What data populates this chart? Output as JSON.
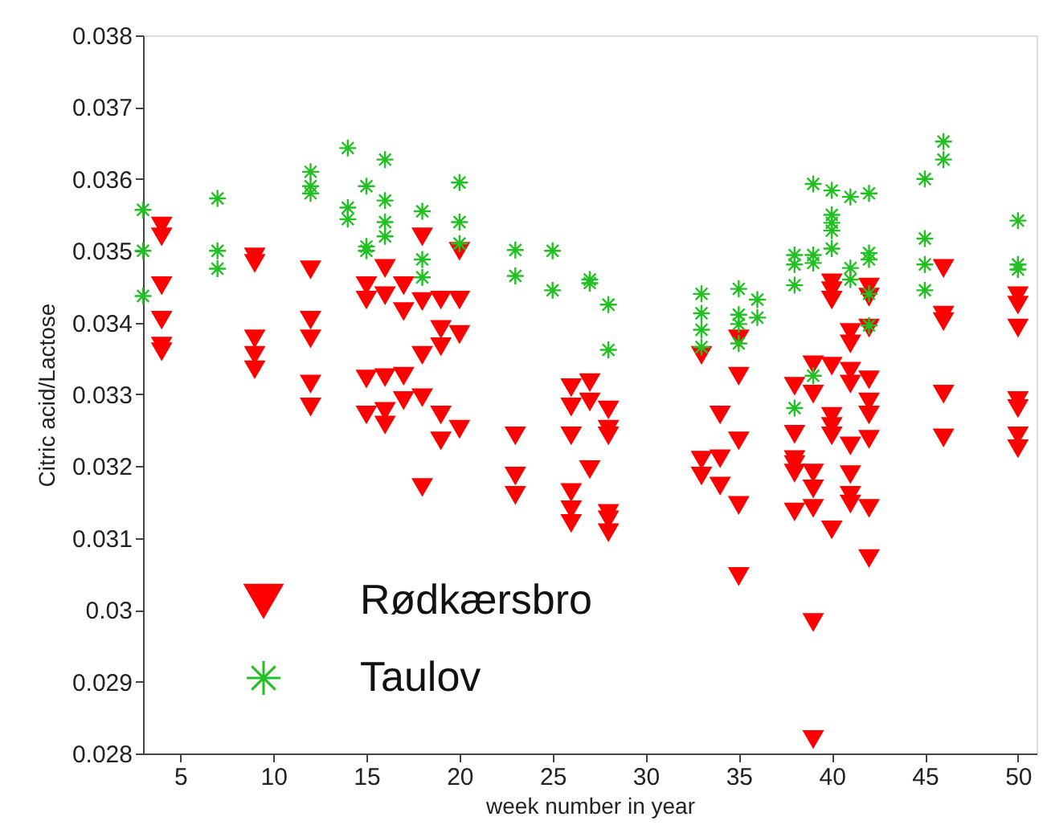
{
  "chart_data": {
    "type": "scatter",
    "xlabel": "week number in year",
    "ylabel": "Citric acid/Lactose",
    "xlim": [
      3,
      51
    ],
    "ylim": [
      0.028,
      0.038
    ],
    "xticks": [
      5,
      10,
      15,
      20,
      25,
      30,
      35,
      40,
      45,
      50
    ],
    "yticks": [
      0.028,
      0.029,
      0.03,
      0.031,
      0.032,
      0.033,
      0.034,
      0.035,
      0.036,
      0.037,
      0.038
    ],
    "grid": false,
    "legend": "bottom left",
    "series": [
      {
        "name": "Rødkærsbro",
        "color": "#ff0000",
        "marker": "triangle",
        "x": [
          4,
          4,
          4,
          4,
          4,
          4,
          9,
          9,
          9,
          9,
          9,
          12,
          12,
          12,
          12,
          12,
          15,
          15,
          15,
          15,
          16,
          16,
          16,
          16,
          16,
          17,
          17,
          17,
          17,
          18,
          18,
          18,
          18,
          18,
          19,
          19,
          19,
          19,
          19,
          20,
          20,
          20,
          20,
          23,
          23,
          23,
          26,
          26,
          26,
          26,
          26,
          26,
          27,
          27,
          27,
          28,
          28,
          28,
          28,
          28,
          28,
          33,
          33,
          33,
          34,
          34,
          34,
          35,
          35,
          35,
          35,
          35,
          38,
          38,
          38,
          38,
          38,
          38,
          39,
          39,
          39,
          39,
          39,
          39,
          39,
          40,
          40,
          40,
          40,
          40,
          40,
          40,
          40,
          41,
          41,
          41,
          41,
          41,
          41,
          41,
          41,
          42,
          42,
          42,
          42,
          42,
          42,
          42,
          42,
          42,
          46,
          46,
          46,
          46,
          46,
          50,
          50,
          50,
          50,
          50,
          50,
          50
        ],
        "values": [
          0.03535,
          0.0352,
          0.03452,
          0.03404,
          0.03368,
          0.0336,
          0.03492,
          0.03483,
          0.03378,
          0.03355,
          0.03335,
          0.03474,
          0.03404,
          0.03378,
          0.03315,
          0.03283,
          0.03452,
          0.03432,
          0.03322,
          0.03272,
          0.03476,
          0.03438,
          0.03324,
          0.03277,
          0.03258,
          0.03452,
          0.03416,
          0.03326,
          0.03292,
          0.0352,
          0.0343,
          0.03355,
          0.03296,
          0.03171,
          0.03432,
          0.03391,
          0.03367,
          0.03272,
          0.03236,
          0.035,
          0.03432,
          0.03384,
          0.03252,
          0.03243,
          0.03187,
          0.0316,
          0.0331,
          0.03283,
          0.03243,
          0.03164,
          0.0314,
          0.03121,
          0.03317,
          0.0329,
          0.03196,
          0.03279,
          0.03252,
          0.03243,
          0.03135,
          0.03126,
          0.03108,
          0.03355,
          0.03209,
          0.03187,
          0.03272,
          0.03211,
          0.03173,
          0.03378,
          0.03326,
          0.03236,
          0.03146,
          0.03047,
          0.03312,
          0.03245,
          0.0321,
          0.03203,
          0.03191,
          0.03137,
          0.03342,
          0.03301,
          0.03191,
          0.03169,
          0.03142,
          0.02983,
          0.0282,
          0.03456,
          0.03445,
          0.03432,
          0.0334,
          0.0327,
          0.03256,
          0.03243,
          0.03112,
          0.03387,
          0.03371,
          0.03333,
          0.03315,
          0.03229,
          0.03189,
          0.0316,
          0.03148,
          0.0345,
          0.03436,
          0.03393,
          0.03321,
          0.0329,
          0.03272,
          0.03238,
          0.03142,
          0.03072,
          0.03476,
          0.03411,
          0.03402,
          0.03301,
          0.0324,
          0.03438,
          0.03425,
          0.03393,
          0.03292,
          0.03281,
          0.03243,
          0.03225
        ]
      },
      {
        "name": "Taulov",
        "color": "#22c022",
        "marker": "cross",
        "x": [
          3,
          3,
          3,
          7,
          7,
          7,
          12,
          12,
          12,
          14,
          14,
          14,
          15,
          15,
          15,
          16,
          16,
          16,
          16,
          18,
          18,
          18,
          20,
          20,
          20,
          23,
          23,
          25,
          25,
          27,
          27,
          28,
          28,
          33,
          33,
          33,
          33,
          35,
          35,
          35,
          35,
          36,
          36,
          38,
          38,
          38,
          38,
          39,
          39,
          39,
          39,
          40,
          40,
          40,
          40,
          40,
          41,
          41,
          41,
          42,
          42,
          42,
          42,
          42,
          45,
          45,
          45,
          45,
          46,
          46,
          50,
          50,
          50
        ],
        "values": [
          0.03557,
          0.035,
          0.03437,
          0.03573,
          0.035,
          0.03475,
          0.0361,
          0.0359,
          0.0358,
          0.03643,
          0.0356,
          0.03544,
          0.0359,
          0.03506,
          0.035,
          0.03627,
          0.0357,
          0.0354,
          0.0352,
          0.03555,
          0.03488,
          0.03463,
          0.03595,
          0.0354,
          0.0351,
          0.03501,
          0.03465,
          0.035,
          0.03445,
          0.0346,
          0.03455,
          0.03425,
          0.03362,
          0.0344,
          0.03413,
          0.0339,
          0.03366,
          0.03447,
          0.03411,
          0.03398,
          0.03371,
          0.03432,
          0.03407,
          0.03494,
          0.03481,
          0.03452,
          0.03281,
          0.03593,
          0.03494,
          0.03483,
          0.03326,
          0.03584,
          0.0355,
          0.03539,
          0.03528,
          0.03503,
          0.03575,
          0.03476,
          0.0346,
          0.0358,
          0.03497,
          0.03488,
          0.0344,
          0.03396,
          0.036,
          0.03517,
          0.03481,
          0.03445,
          0.03652,
          0.03627,
          0.03542,
          0.03481,
          0.03474
        ]
      }
    ]
  }
}
